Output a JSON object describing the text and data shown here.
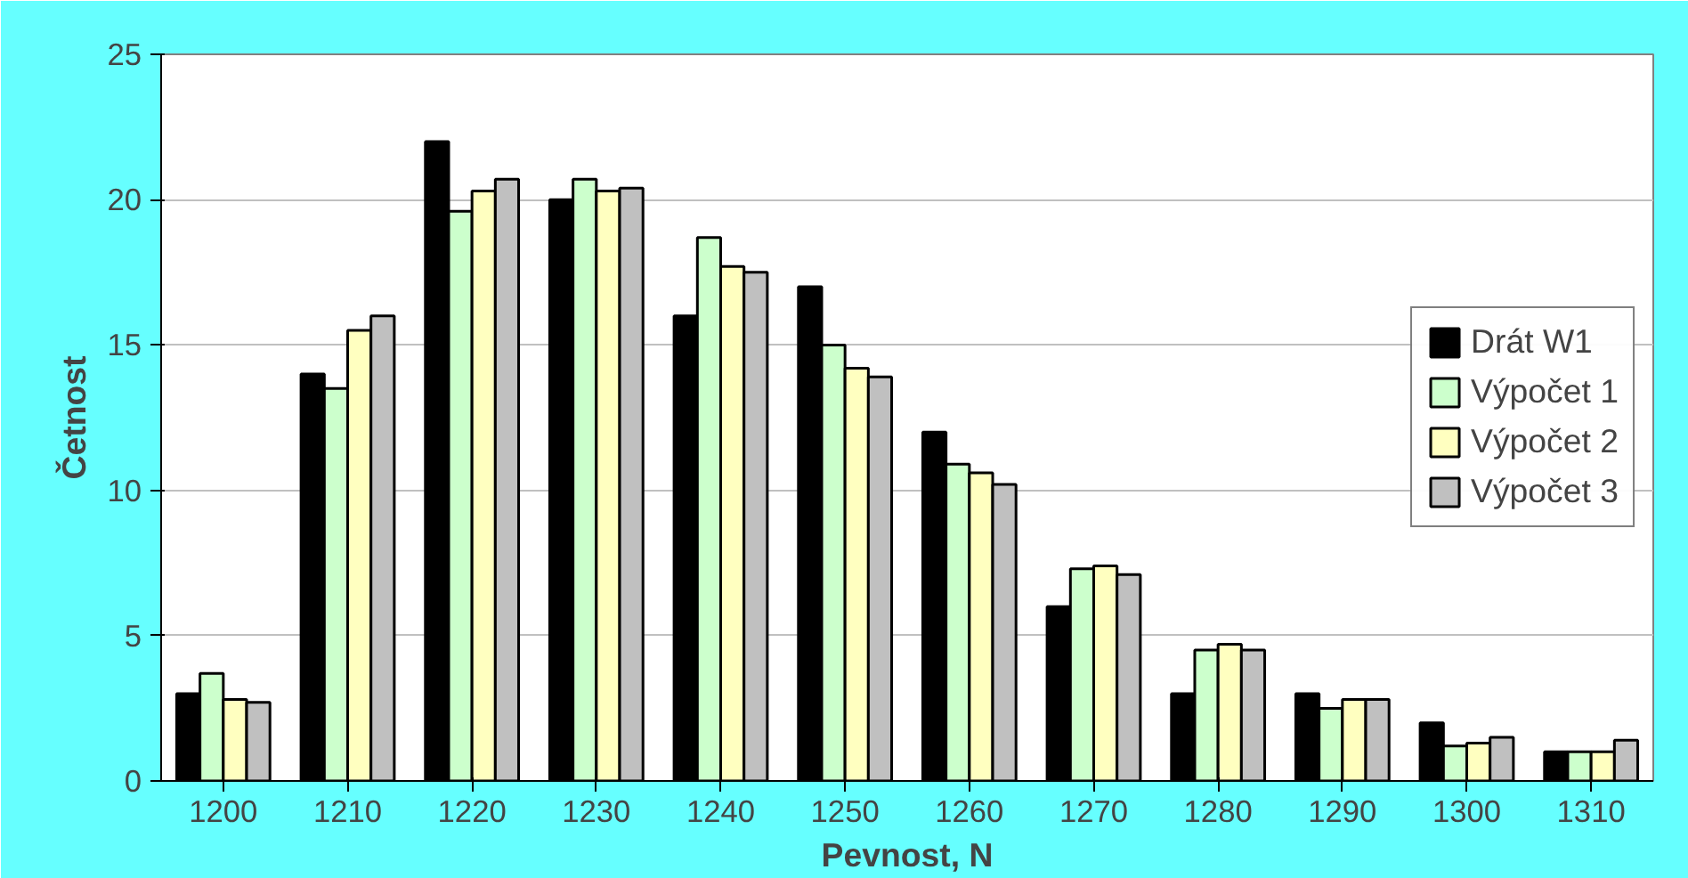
{
  "chart_data": {
    "type": "bar",
    "xlabel": "Pevnost, N",
    "ylabel": "Četnost",
    "categories": [
      "1200",
      "1210",
      "1220",
      "1230",
      "1240",
      "1250",
      "1260",
      "1270",
      "1280",
      "1290",
      "1300",
      "1310"
    ],
    "series": [
      {
        "name": "Drát W1",
        "color": "#000000",
        "values": [
          3,
          14,
          22,
          20,
          16,
          17,
          12,
          6,
          3,
          3,
          2,
          1
        ]
      },
      {
        "name": "Výpočet 1",
        "color": "#ccffcc",
        "values": [
          3.7,
          13.5,
          19.6,
          20.7,
          18.7,
          15,
          10.9,
          7.3,
          4.5,
          2.5,
          1.2,
          1
        ]
      },
      {
        "name": "Výpočet 2",
        "color": "#ffffc0",
        "values": [
          2.8,
          15.5,
          20.3,
          20.3,
          17.7,
          14.2,
          10.6,
          7.4,
          4.7,
          2.8,
          1.3,
          1
        ]
      },
      {
        "name": "Výpočet 3",
        "color": "#c0c0c0",
        "values": [
          2.7,
          16,
          20.7,
          20.4,
          17.5,
          13.9,
          10.2,
          7.1,
          4.5,
          2.8,
          1.5,
          1.4
        ]
      }
    ],
    "ylim": [
      0,
      25
    ],
    "yticks": [
      0,
      5,
      10,
      15,
      20,
      25
    ],
    "grid": "y",
    "legend": "right"
  }
}
